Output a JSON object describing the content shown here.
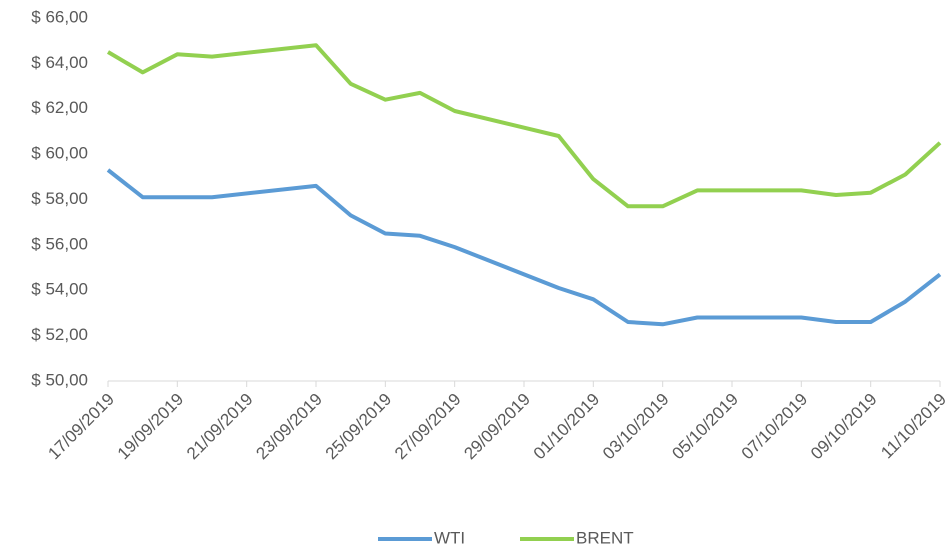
{
  "chart_data": {
    "type": "line",
    "x": [
      "17/09/2019",
      "18/09/2019",
      "19/09/2019",
      "20/09/2019",
      "23/09/2019",
      "24/09/2019",
      "25/09/2019",
      "26/09/2019",
      "27/09/2019",
      "30/09/2019",
      "01/10/2019",
      "02/10/2019",
      "03/10/2019",
      "04/10/2019",
      "07/10/2019",
      "08/10/2019",
      "09/10/2019",
      "10/10/2019",
      "11/10/2019"
    ],
    "series": [
      {
        "name": "WTI",
        "color": "#5b9bd5",
        "values": [
          59.3,
          58.1,
          58.1,
          58.1,
          58.6,
          57.3,
          56.5,
          56.4,
          55.9,
          54.1,
          53.6,
          52.6,
          52.5,
          52.8,
          52.8,
          52.6,
          52.6,
          53.5,
          54.7
        ]
      },
      {
        "name": "BRENT",
        "color": "#92d050",
        "values": [
          64.5,
          63.6,
          64.4,
          64.3,
          64.8,
          63.1,
          62.4,
          62.7,
          61.9,
          60.8,
          58.9,
          57.7,
          57.7,
          58.4,
          58.4,
          58.2,
          58.3,
          59.1,
          60.5
        ]
      }
    ],
    "xlim": [
      "17/09/2019",
      "11/10/2019"
    ],
    "xticks": [
      "17/09/2019",
      "19/09/2019",
      "21/09/2019",
      "23/09/2019",
      "25/09/2019",
      "27/09/2019",
      "29/09/2019",
      "01/10/2019",
      "03/10/2019",
      "05/10/2019",
      "07/10/2019",
      "09/10/2019",
      "11/10/2019"
    ],
    "ylim": [
      50,
      66
    ],
    "yticks": [
      {
        "value": 50,
        "label": "$ 50,00"
      },
      {
        "value": 52,
        "label": "$ 52,00"
      },
      {
        "value": 54,
        "label": "$ 54,00"
      },
      {
        "value": 56,
        "label": "$ 56,00"
      },
      {
        "value": 58,
        "label": "$ 58,00"
      },
      {
        "value": 60,
        "label": "$ 60,00"
      },
      {
        "value": 62,
        "label": "$ 62,00"
      },
      {
        "value": 64,
        "label": "$ 64,00"
      },
      {
        "value": 66,
        "label": "$ 66,00"
      }
    ],
    "legend": "bottom"
  }
}
